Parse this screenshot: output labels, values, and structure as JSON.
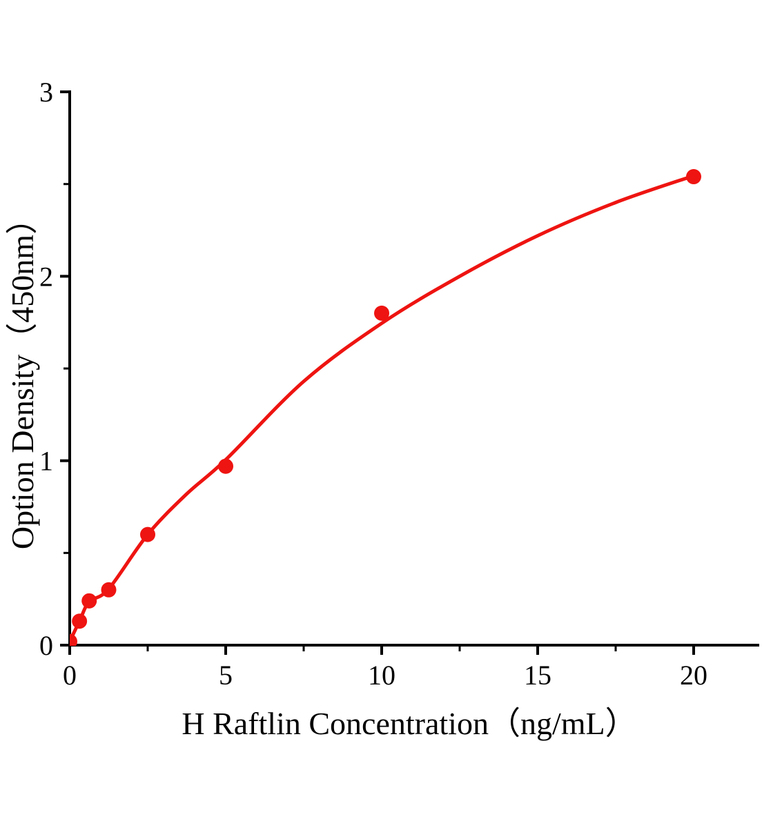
{
  "figure": {
    "description": "ELISA standard curve plot, red dots with red fitted curve on white background"
  },
  "chart_data": {
    "type": "scatter",
    "title": "",
    "xlabel": "H Raftlin Concentration（ng/mL）",
    "ylabel": "Option Density（450nm）",
    "xlim": [
      0,
      22.1
    ],
    "ylim": [
      0,
      3
    ],
    "x_major_ticks": [
      0,
      5,
      10,
      15,
      20
    ],
    "x_minor_ticks": [
      2.5,
      7.5,
      12.5,
      17.5
    ],
    "y_major_ticks": [
      0,
      1,
      2,
      3
    ],
    "y_minor_ticks": [
      0.5,
      1.5,
      2.5
    ],
    "grid": false,
    "legend": null,
    "points": [
      [
        0,
        0.02
      ],
      [
        0.313,
        0.13
      ],
      [
        0.625,
        0.24
      ],
      [
        1.25,
        0.3
      ],
      [
        2.5,
        0.6
      ],
      [
        5,
        0.97
      ],
      [
        10,
        1.8
      ],
      [
        20,
        2.54
      ]
    ],
    "fit_curve": [
      [
        0,
        0.02
      ],
      [
        0.313,
        0.13
      ],
      [
        0.625,
        0.235
      ],
      [
        1.25,
        0.305
      ],
      [
        2.5,
        0.6
      ],
      [
        3.75,
        0.82
      ],
      [
        5,
        1.005
      ],
      [
        7.5,
        1.43
      ],
      [
        10,
        1.745
      ],
      [
        12.5,
        2.0
      ],
      [
        15,
        2.22
      ],
      [
        17.5,
        2.4
      ],
      [
        20,
        2.545
      ]
    ],
    "point_color": "#ee1411",
    "curve_color": "#ee1411",
    "axis_color": "#000000",
    "background_color": "#ffffff"
  }
}
